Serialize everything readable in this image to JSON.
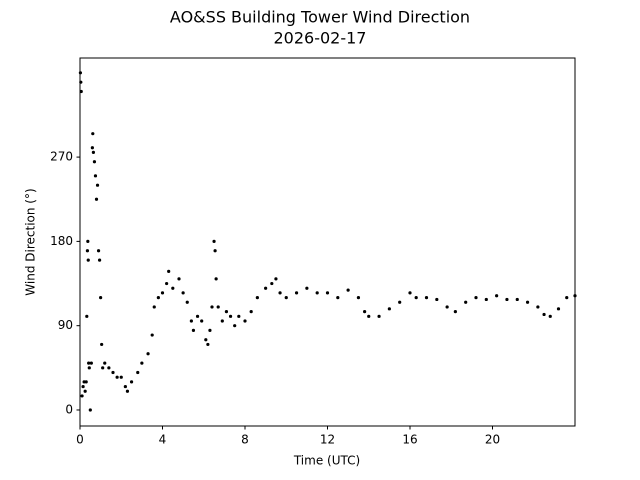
{
  "chart_data": {
    "type": "scatter",
    "title": "AO&SS Building Tower Wind Direction",
    "subtitle": "2026-02-17",
    "xlabel": "Time (UTC)",
    "ylabel": "Wind Direction (°)",
    "color": "#000000",
    "x": [
      0.02,
      0.04,
      0.06,
      0.1,
      0.15,
      0.2,
      0.25,
      0.3,
      0.33,
      0.36,
      0.38,
      0.4,
      0.42,
      0.45,
      0.5,
      0.55,
      0.6,
      0.62,
      0.65,
      0.7,
      0.75,
      0.8,
      0.85,
      0.9,
      0.95,
      1.0,
      1.05,
      1.1,
      1.2,
      1.4,
      1.6,
      1.8,
      2.0,
      2.2,
      2.3,
      2.5,
      2.8,
      3.0,
      3.3,
      3.5,
      3.6,
      3.8,
      4.0,
      4.2,
      4.3,
      4.5,
      4.8,
      5.0,
      5.2,
      5.4,
      5.5,
      5.7,
      5.9,
      6.1,
      6.2,
      6.3,
      6.4,
      6.5,
      6.55,
      6.6,
      6.7,
      6.9,
      7.1,
      7.3,
      7.5,
      7.7,
      8.0,
      8.3,
      8.6,
      9.0,
      9.3,
      9.5,
      9.7,
      10.0,
      10.5,
      11.0,
      11.5,
      12.0,
      12.5,
      13.0,
      13.5,
      13.8,
      14.0,
      14.5,
      15.0,
      15.5,
      16.0,
      16.3,
      16.8,
      17.3,
      17.8,
      18.2,
      18.7,
      19.2,
      19.7,
      20.2,
      20.7,
      21.2,
      21.7,
      22.2,
      22.5,
      22.8,
      23.2,
      23.6,
      24.0
    ],
    "values": [
      360,
      350,
      340,
      15,
      25,
      30,
      20,
      30,
      100,
      170,
      180,
      160,
      50,
      45,
      0,
      50,
      280,
      295,
      275,
      265,
      250,
      225,
      240,
      170,
      160,
      120,
      70,
      45,
      50,
      45,
      40,
      35,
      35,
      25,
      20,
      30,
      40,
      50,
      60,
      80,
      110,
      120,
      125,
      135,
      148,
      130,
      140,
      125,
      115,
      95,
      85,
      100,
      95,
      75,
      70,
      85,
      110,
      180,
      170,
      140,
      110,
      95,
      105,
      100,
      90,
      100,
      95,
      105,
      120,
      130,
      135,
      140,
      125,
      120,
      125,
      130,
      125,
      125,
      120,
      128,
      120,
      105,
      100,
      100,
      108,
      115,
      125,
      120,
      120,
      118,
      110,
      105,
      115,
      120,
      118,
      122,
      118,
      118,
      115,
      110,
      102,
      100,
      108,
      120,
      122
    ],
    "xlim": [
      0,
      24
    ],
    "ylim": [
      -17.1,
      375.8
    ],
    "xticks": [
      0,
      4,
      8,
      12,
      16,
      20
    ],
    "yticks": [
      0,
      90,
      180,
      270
    ],
    "grid": false
  }
}
